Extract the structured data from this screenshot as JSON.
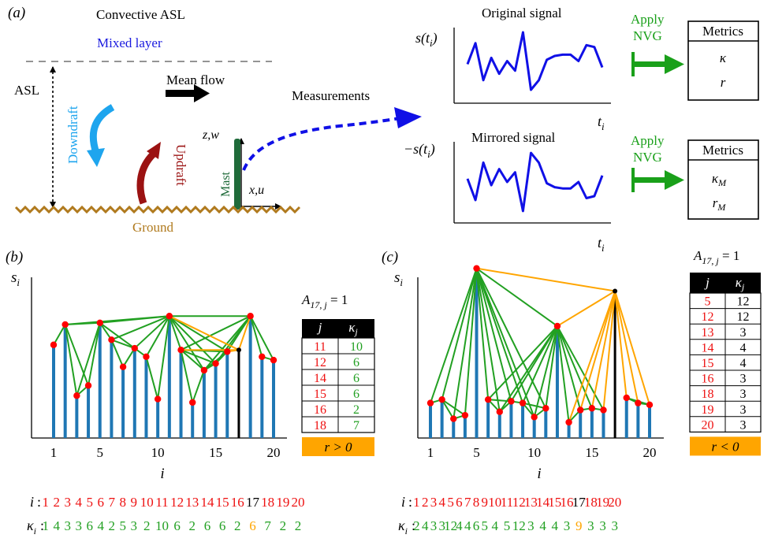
{
  "panel_a": {
    "label": "(a)",
    "title": "Convective ASL",
    "mixed_layer": "Mixed layer",
    "asl": "ASL",
    "downdraft": "Downdraft",
    "updraft": "Updraft",
    "mean_flow": "Mean flow",
    "zw": "z,w",
    "xu": "x,u",
    "mast": "Mast",
    "ground": "Ground",
    "measurements": "Measurements",
    "original_signal": "Original signal",
    "mirrored_signal": "Mirrored signal",
    "s_of_t": "s(t",
    "neg_s_of_t": "−s(t",
    "t": "t",
    "sub_i": "i",
    "close_paren": ")",
    "apply_top": [
      "Apply",
      "NVG"
    ],
    "apply_bottom": [
      "Apply",
      "NVG"
    ],
    "metrics_top": {
      "title": "Metrics",
      "lines": [
        "κ",
        "r"
      ]
    },
    "metrics_bottom": {
      "title": "Metrics",
      "lines": [
        "κ",
        "r"
      ],
      "sub": [
        "M",
        "M"
      ]
    },
    "original_values": [
      0.45,
      0.78,
      0.2,
      0.55,
      0.3,
      0.5,
      0.35,
      0.95,
      0.05,
      0.2,
      0.52,
      0.58,
      0.6,
      0.6,
      0.5,
      0.75,
      0.72,
      0.4
    ],
    "mirrored_values": [
      0.55,
      0.22,
      0.8,
      0.45,
      0.7,
      0.5,
      0.65,
      0.05,
      0.95,
      0.8,
      0.48,
      0.42,
      0.4,
      0.4,
      0.5,
      0.25,
      0.28,
      0.6
    ]
  },
  "panel_b": {
    "label": "(b)",
    "ylabel": "s",
    "ylabel_sub": "i",
    "xlabel": "i",
    "xticks": [
      "1",
      "5",
      "10",
      "15",
      "20"
    ],
    "values": [
      0.55,
      0.67,
      0.25,
      0.31,
      0.68,
      0.58,
      0.42,
      0.53,
      0.48,
      0.23,
      0.72,
      0.52,
      0.21,
      0.4,
      0.44,
      0.51,
      0.52,
      0.72,
      0.48,
      0.46
    ],
    "highlight_index": 17,
    "table_title": "A",
    "table_title_sub": "17, j",
    "table_title_rhs": " = 1",
    "table_head": [
      "j",
      "κ"
    ],
    "table_head_sub": "j",
    "table_rows": [
      [
        "11",
        "10"
      ],
      [
        "12",
        "6"
      ],
      [
        "14",
        "6"
      ],
      [
        "15",
        "6"
      ],
      [
        "16",
        "2"
      ],
      [
        "18",
        "7"
      ]
    ],
    "result": "r > 0"
  },
  "panel_c": {
    "label": "(c)",
    "ylabel": "s",
    "ylabel_sub": "i",
    "xlabel": "i",
    "xticks": [
      "1",
      "5",
      "10",
      "15",
      "20"
    ],
    "values": [
      0.2,
      0.22,
      0.11,
      0.13,
      0.97,
      0.22,
      0.15,
      0.21,
      0.2,
      0.12,
      0.17,
      0.64,
      0.09,
      0.16,
      0.17,
      0.16,
      0.84,
      0.23,
      0.2,
      0.19
    ],
    "highlight_index": 17,
    "table_title": "A",
    "table_title_sub": "17, j",
    "table_title_rhs": " = 1",
    "table_head": [
      "j",
      "κ"
    ],
    "table_head_sub": "j",
    "table_rows": [
      [
        "5",
        "12"
      ],
      [
        "12",
        "12"
      ],
      [
        "13",
        "3"
      ],
      [
        "14",
        "4"
      ],
      [
        "15",
        "4"
      ],
      [
        "16",
        "3"
      ],
      [
        "18",
        "3"
      ],
      [
        "19",
        "3"
      ],
      [
        "20",
        "3"
      ]
    ],
    "result": "r < 0"
  },
  "bottom_b": {
    "i_label": "i",
    "k_label": "κ",
    "k_sub": "i",
    "colon": ":",
    "i_values": [
      "1",
      "2",
      "3",
      "4",
      "5",
      "6",
      "7",
      "8",
      "9",
      "10",
      "11",
      "12",
      "13",
      "14",
      "15",
      "16",
      "17",
      "18",
      "19",
      "20"
    ],
    "k_values": [
      "1",
      "4",
      "3",
      "3",
      "6",
      "4",
      "2",
      "5",
      "3",
      "2",
      "10",
      "6",
      "2",
      "6",
      "6",
      "2",
      "6",
      "7",
      "2",
      "2"
    ]
  },
  "bottom_c": {
    "i_label": "i",
    "k_label": "κ",
    "k_sub": "i",
    "colon": ":",
    "i_values": [
      "1",
      "2",
      "3",
      "4",
      "5",
      "6",
      "7",
      "8",
      "9",
      "10",
      "11",
      "12",
      "13",
      "14",
      "15",
      "16",
      "17",
      "18",
      "19",
      "20"
    ],
    "k_values": [
      "2",
      "4",
      "3",
      "3",
      "12",
      "4",
      "4",
      "6",
      "5",
      "4",
      "5",
      "12",
      "3",
      "4",
      "4",
      "3",
      "9",
      "3",
      "3",
      "3"
    ]
  },
  "colors": {
    "bar": "#1f77b4",
    "dot": "#ff0000",
    "green": "#22a022",
    "orange": "#ffa500",
    "red_text": "#ee1111",
    "blue_text": "#1a1adf",
    "downdraft": "#1ea5ee",
    "updraft": "#9b1212",
    "ground": "#b07a1e",
    "mast": "#1f6b3a",
    "signal": "#1010e6",
    "arrow_green": "#1aa01a"
  }
}
